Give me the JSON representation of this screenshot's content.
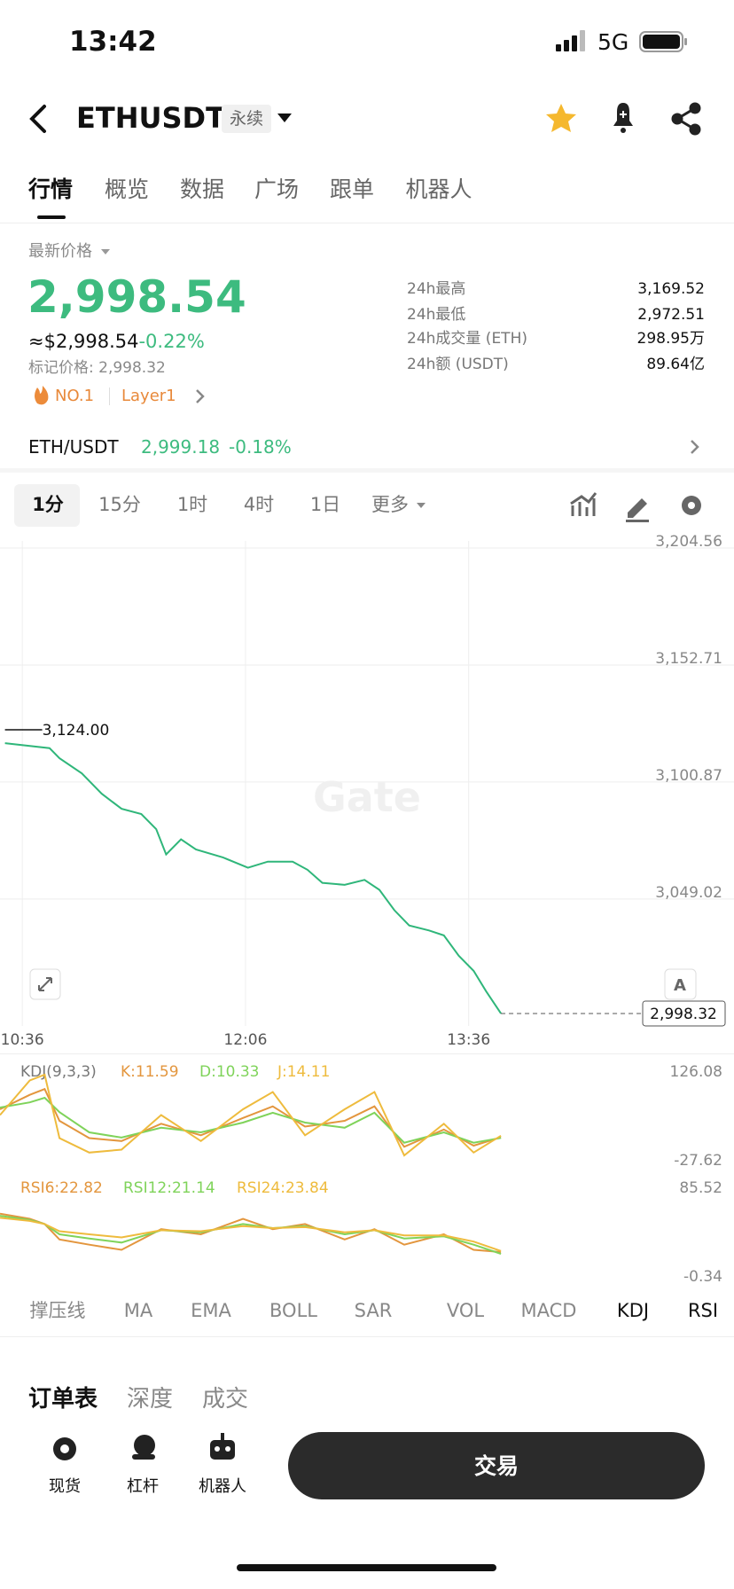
{
  "status_bar": {
    "time": "13:42",
    "network": "5G"
  },
  "header": {
    "symbol": "ETHUSDT",
    "badge": "永续"
  },
  "tabs": [
    "行情",
    "概览",
    "数据",
    "广场",
    "跟单",
    "机器人"
  ],
  "price_section": {
    "label": "最新价格",
    "price": "2,998.54",
    "usd_price": "≈$2,998.54",
    "change": "-0.22%",
    "mark_price": "标记价格: 2,998.32",
    "tags": [
      "NO.1",
      "Layer1"
    ],
    "stats": [
      {
        "label": "24h最高",
        "value": "3,169.52"
      },
      {
        "label": "24h最低",
        "value": "2,972.51"
      },
      {
        "label": "24h成交量 (ETH)",
        "value": "298.95万"
      },
      {
        "label": "24h额 (USDT)",
        "value": "89.64亿"
      }
    ]
  },
  "spot": {
    "pair": "ETH/USDT",
    "price": "2,999.18",
    "change": "-0.18%"
  },
  "timeframes": [
    "1分",
    "15分",
    "1时",
    "4时",
    "1日",
    "更多"
  ],
  "chart_data": [
    {
      "type": "line",
      "watermark": "Gate",
      "color": "#2fb67a",
      "grid": true,
      "x": [
        -7,
        11,
        15,
        24,
        32,
        40,
        48,
        54,
        58,
        64,
        70,
        81,
        91,
        99,
        109,
        115,
        121,
        130,
        138,
        144,
        150,
        156,
        164,
        170,
        176,
        182,
        187,
        193
      ],
      "values": [
        3118.1,
        3115.9,
        3111.4,
        3104.7,
        3095.7,
        3089.0,
        3086.7,
        3080.0,
        3068.8,
        3075.5,
        3071.0,
        3067.4,
        3062.9,
        3065.6,
        3065.6,
        3062.0,
        3056.2,
        3055.3,
        3057.5,
        3053.1,
        3044.1,
        3037.3,
        3035.1,
        3032.9,
        3023.9,
        3017.2,
        3008.2,
        2998.32
      ],
      "xlim": [
        -9,
        287
      ],
      "xticks": [
        {
          "value": 0,
          "label": "10:36"
        },
        {
          "value": 90,
          "label": "12:06"
        },
        {
          "value": 180,
          "label": "13:36"
        }
      ],
      "ylim": [
        2992.8,
        3207.7
      ],
      "yticks": [
        {
          "value": 3204.56,
          "label": "3,204.56"
        },
        {
          "value": 3152.71,
          "label": "3,152.71"
        },
        {
          "value": 3100.87,
          "label": "3,100.87"
        },
        {
          "value": 3049.02,
          "label": "3,049.02"
        }
      ],
      "max_label": {
        "x": -7,
        "value": 3124,
        "label": "3,124.00"
      },
      "last_price": {
        "value": 2998.32,
        "label": "2,998.32"
      }
    },
    {
      "type": "line",
      "title": "KDJ(9,3,3)",
      "xlim": [
        -9,
        287
      ],
      "x": [
        -9,
        3,
        9,
        15,
        27,
        40,
        56,
        72,
        89,
        101,
        114,
        130,
        142,
        154,
        170,
        182,
        193
      ],
      "ylim": [
        -27.62,
        126.08
      ],
      "yticks": [
        126.08,
        -27.62
      ],
      "series": [
        {
          "name": "K:11.59",
          "color": "#e3963e",
          "values": [
            60,
            85,
            95,
            40,
            10,
            5,
            35,
            15,
            45,
            65,
            30,
            40,
            65,
            -5,
            25,
            -3,
            11.59
          ]
        },
        {
          "name": "D:10.33",
          "color": "#7fd35a",
          "values": [
            63,
            72,
            80,
            55,
            20,
            11,
            28,
            20,
            37,
            54,
            37,
            28,
            54,
            2,
            20,
            2,
            10.33
          ]
        },
        {
          "name": "J:14.11",
          "color": "#eebb3d",
          "values": [
            50,
            110,
            120,
            10,
            -15,
            -10,
            50,
            5,
            60,
            90,
            15,
            60,
            90,
            -20,
            35,
            -15,
            14.11
          ]
        }
      ]
    },
    {
      "type": "line",
      "xlim": [
        -9,
        287
      ],
      "x": [
        -9,
        3,
        9,
        15,
        27,
        40,
        56,
        72,
        89,
        101,
        114,
        130,
        142,
        154,
        170,
        182,
        193
      ],
      "ylim": [
        -0.34,
        85.52
      ],
      "yticks": [
        85.52,
        -0.34
      ],
      "series": [
        {
          "name": "RSI6:22.82",
          "color": "#e3963e",
          "values": [
            60,
            55,
            50,
            35,
            30,
            25,
            45,
            40,
            55,
            45,
            50,
            35,
            45,
            30,
            40,
            25,
            22.82
          ]
        },
        {
          "name": "RSI12:21.14",
          "color": "#7fd35a",
          "values": [
            58,
            54,
            50,
            40,
            36,
            32,
            44,
            42,
            50,
            46,
            48,
            40,
            44,
            36,
            38,
            30,
            21.14
          ]
        },
        {
          "name": "RSI24:23.84",
          "color": "#eebb3d",
          "values": [
            56,
            53,
            50,
            43,
            40,
            37,
            44,
            43,
            48,
            46,
            47,
            42,
            44,
            39,
            39,
            33,
            23.84
          ]
        }
      ]
    }
  ],
  "indicator_tabs": [
    "撑压线",
    "MA",
    "EMA",
    "BOLL",
    "SAR",
    "VOL",
    "MACD",
    "KDJ",
    "RSI"
  ],
  "bottom_tabs": [
    "订单表",
    "深度",
    "成交"
  ],
  "bottom_bar": {
    "actions": [
      "现货",
      "杠杆",
      "机器人"
    ],
    "trade_button": "交易"
  }
}
